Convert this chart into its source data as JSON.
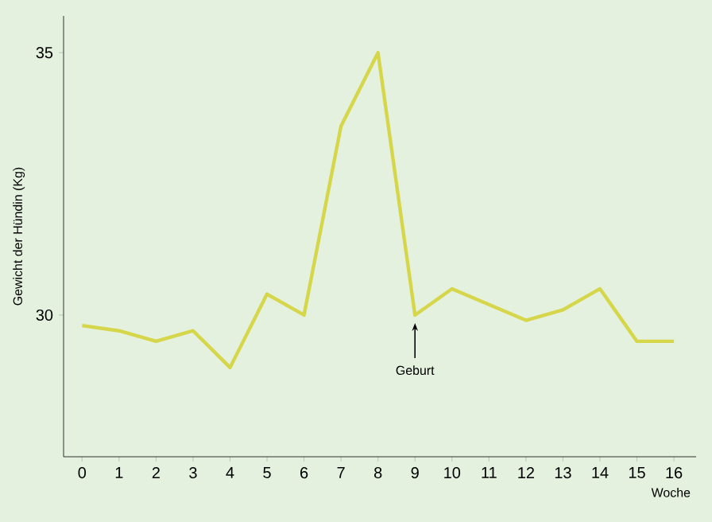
{
  "chart_data": {
    "type": "line",
    "xlabel": "Woche",
    "ylabel": "Gewicht der Hündin (Kg)",
    "x": [
      0,
      1,
      2,
      3,
      4,
      5,
      6,
      7,
      8,
      9,
      10,
      11,
      12,
      13,
      14,
      15,
      16
    ],
    "values": [
      29.8,
      29.7,
      29.5,
      29.7,
      29.0,
      30.4,
      30.0,
      33.6,
      35.0,
      30.0,
      30.5,
      30.2,
      29.9,
      30.1,
      30.5,
      29.5,
      29.5
    ],
    "color": "#d6d64a",
    "xlim": [
      -0.5,
      16.6
    ],
    "ylim": [
      27.3,
      35.7
    ],
    "xticks": [
      0,
      1,
      2,
      3,
      4,
      5,
      6,
      7,
      8,
      9,
      10,
      11,
      12,
      13,
      14,
      15,
      16
    ],
    "yticks": [
      30,
      35
    ],
    "annotations": [
      {
        "text": "Geburt",
        "x": 9,
        "y": 30
      }
    ],
    "grid": false,
    "marker": "none",
    "line_style": "solid"
  }
}
